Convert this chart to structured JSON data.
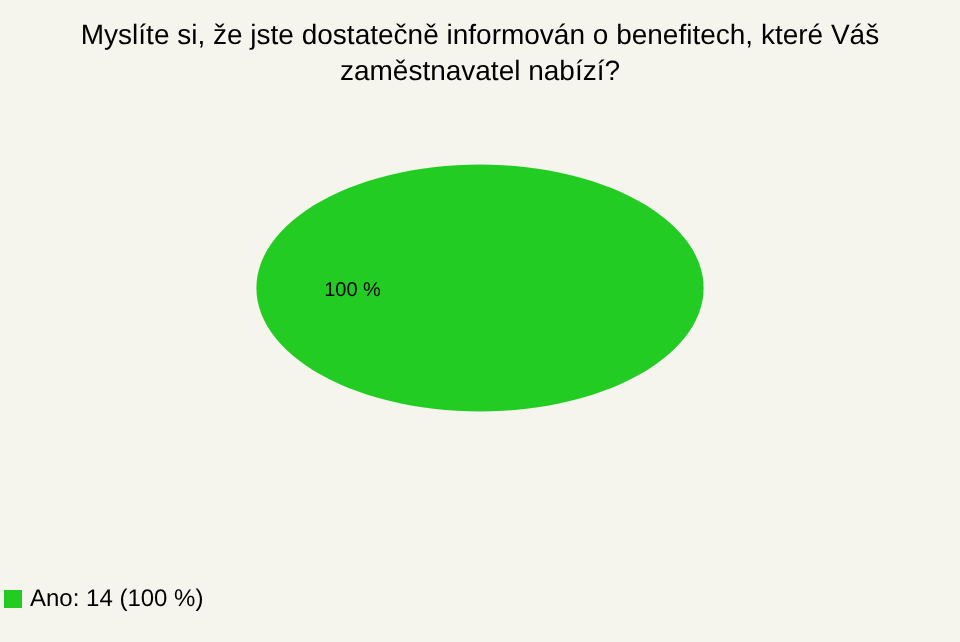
{
  "chart_data": {
    "type": "pie",
    "title": "Myslíte si, že jste dostatečně informován o benefitech, které Váš zaměstnavatel nabízí?",
    "categories": [
      "Ano: 14 (100 %)"
    ],
    "values": [
      100
    ],
    "colors": [
      "#22cc22"
    ],
    "value_labels": [
      "100 %"
    ],
    "legend": "bottom left"
  }
}
